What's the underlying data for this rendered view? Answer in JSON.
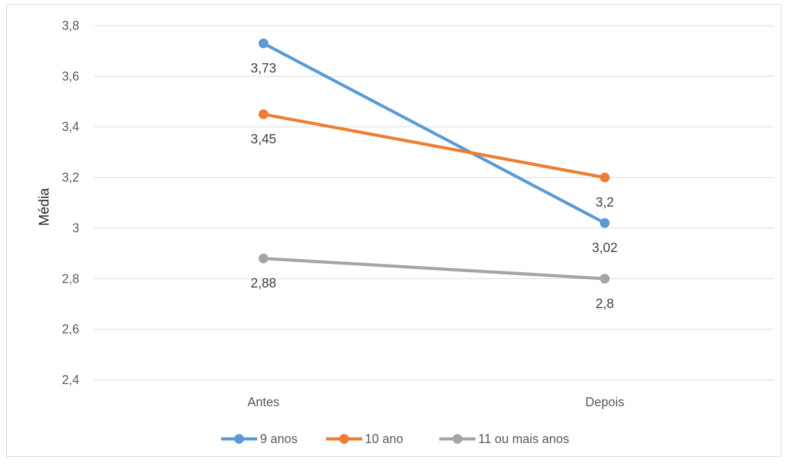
{
  "chart_data": {
    "type": "line",
    "categories": [
      "Antes",
      "Depois"
    ],
    "ylabel": "Média",
    "xlabel": "",
    "ylim": [
      2.4,
      3.8
    ],
    "yticks": [
      "2,4",
      "2,6",
      "2,8",
      "3",
      "3,2",
      "3,4",
      "3,6",
      "3,8"
    ],
    "ytick_values": [
      2.4,
      2.6,
      2.8,
      3.0,
      3.2,
      3.4,
      3.6,
      3.8
    ],
    "grid": true,
    "legend_position": "bottom",
    "series": [
      {
        "name": "9 anos",
        "color": "#5b9bd5",
        "values": [
          3.73,
          3.02
        ],
        "labels": [
          "3,73",
          "3,02"
        ]
      },
      {
        "name": "10 ano",
        "color": "#ed7d31",
        "values": [
          3.45,
          3.2
        ],
        "labels": [
          "3,45",
          "3,2"
        ]
      },
      {
        "name": "11 ou mais anos",
        "color": "#a5a5a5",
        "values": [
          2.88,
          2.8
        ],
        "labels": [
          "2,88",
          "2,8"
        ]
      }
    ]
  }
}
